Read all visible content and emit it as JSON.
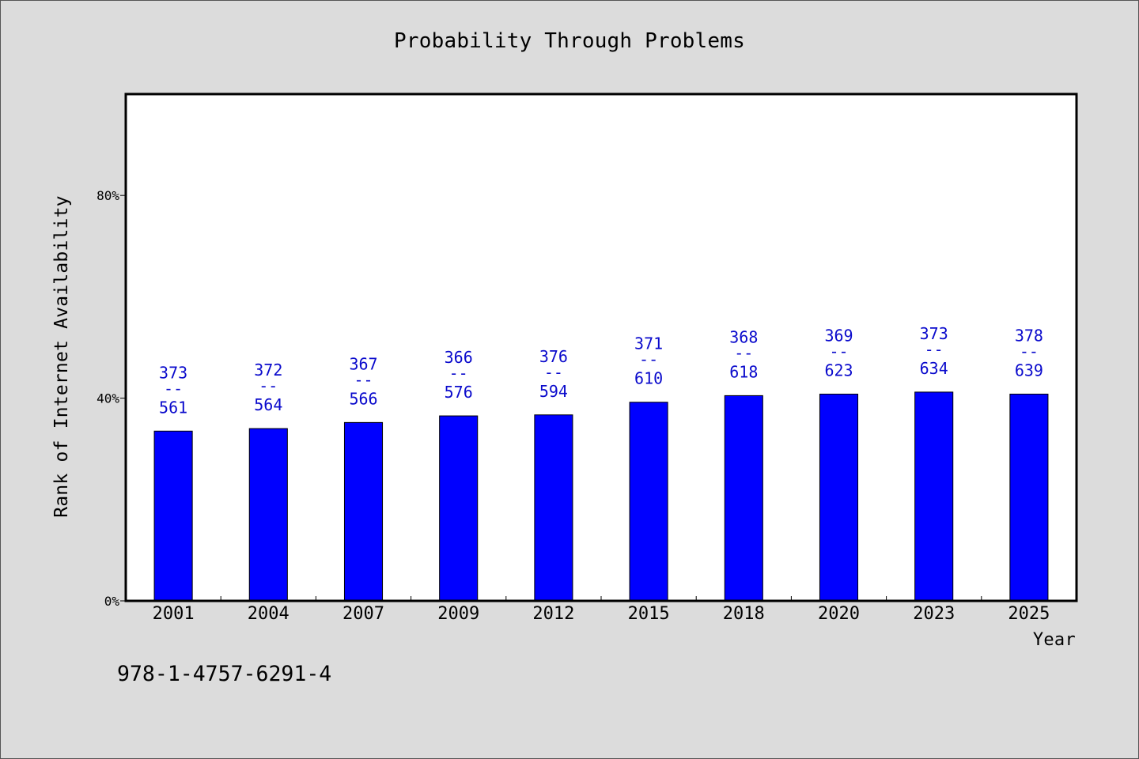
{
  "page": {
    "background": "#dcdcdc",
    "caption": "978-1-4757-6291-4"
  },
  "chart_data": {
    "type": "bar",
    "title": "Probability Through Problems",
    "xlabel": "Year",
    "ylabel": "Rank of Internet Availability",
    "categories": [
      "2001",
      "2004",
      "2007",
      "2009",
      "2012",
      "2015",
      "2018",
      "2020",
      "2023",
      "2025"
    ],
    "values": [
      33.5,
      34.0,
      35.2,
      36.5,
      36.7,
      39.2,
      40.5,
      40.8,
      41.2,
      40.8
    ],
    "ranks": [
      373,
      372,
      367,
      366,
      376,
      371,
      368,
      369,
      373,
      378
    ],
    "totals": [
      561,
      564,
      566,
      576,
      594,
      610,
      618,
      623,
      634,
      639
    ],
    "label_separator": "--",
    "ylim": [
      0,
      100
    ],
    "yticks": [
      0,
      40,
      80
    ],
    "ytick_labels": [
      "0%",
      "40%",
      "80%"
    ],
    "grid": false,
    "legend": null,
    "bar_color": "#0000ff",
    "bar_outline_color": "#000000",
    "label_color": "#0a0acc",
    "plot_background": "#ffffff"
  }
}
